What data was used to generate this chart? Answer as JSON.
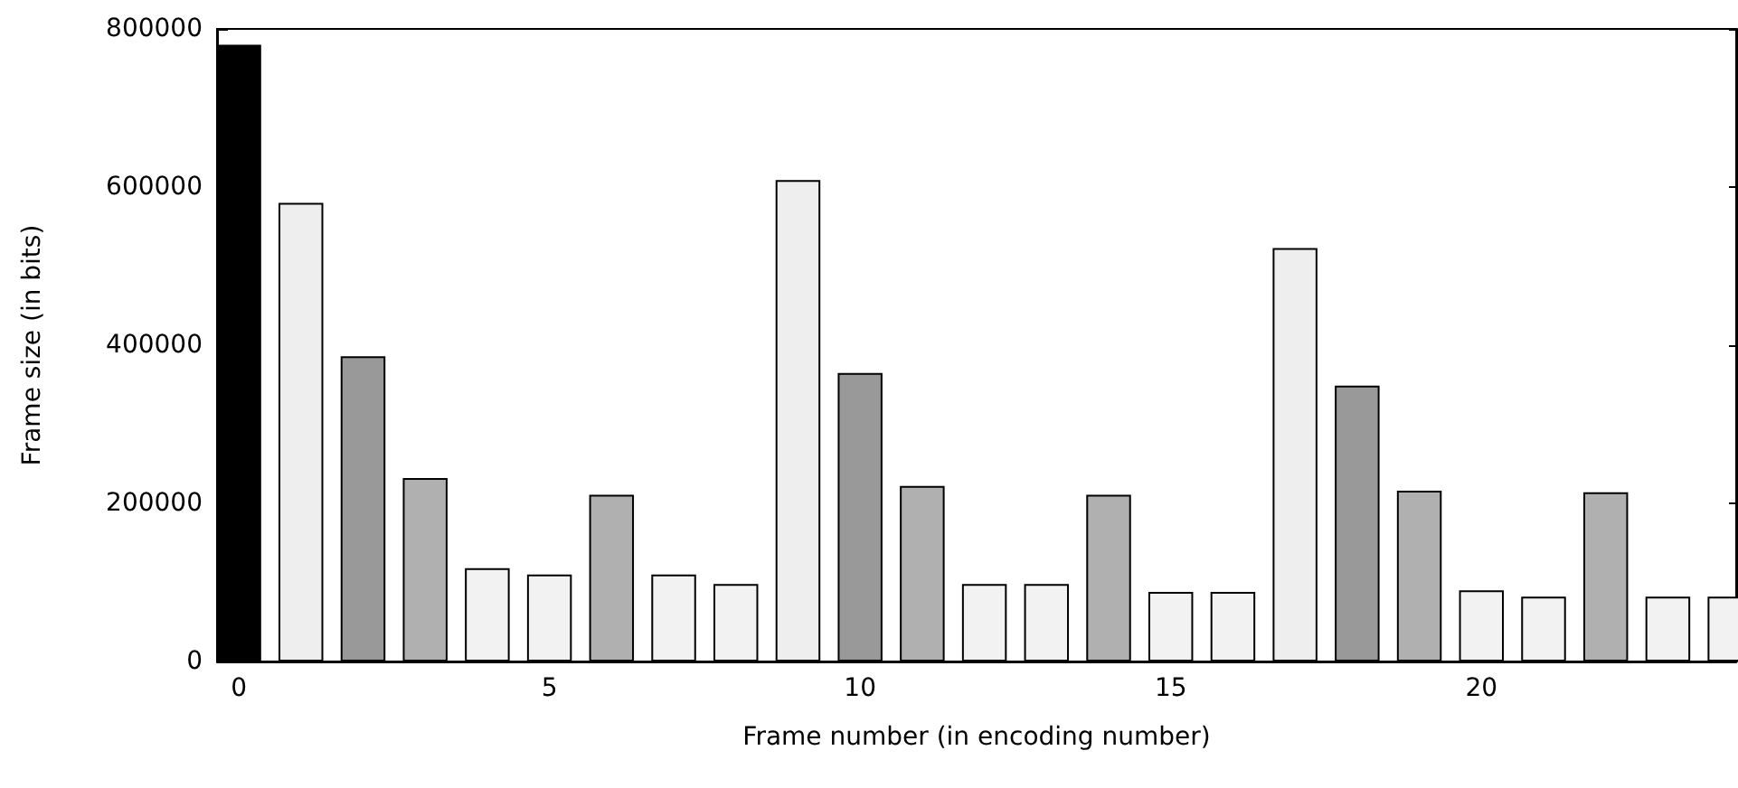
{
  "chart_data": {
    "type": "bar",
    "xlabel": "Frame number (in encoding number)",
    "ylabel": "Frame size (in bits)",
    "x": [
      0,
      1,
      2,
      3,
      4,
      5,
      6,
      7,
      8,
      9,
      10,
      11,
      12,
      13,
      14,
      15,
      16,
      17,
      18,
      19,
      20,
      21,
      22,
      23,
      24
    ],
    "values": [
      780000,
      580000,
      386000,
      232000,
      118000,
      110000,
      211000,
      110000,
      98000,
      609000,
      365000,
      222000,
      98000,
      98000,
      211000,
      88000,
      88000,
      523000,
      349000,
      216000,
      90000,
      82000,
      214000,
      82000,
      82000
    ],
    "colors": [
      "#000000",
      "#eeeeee",
      "#999999",
      "#b0b0b0",
      "#f2f2f2",
      "#f2f2f2",
      "#b0b0b0",
      "#f2f2f2",
      "#f2f2f2",
      "#eeeeee",
      "#999999",
      "#b0b0b0",
      "#f2f2f2",
      "#f2f2f2",
      "#b0b0b0",
      "#f2f2f2",
      "#f2f2f2",
      "#eeeeee",
      "#999999",
      "#b0b0b0",
      "#f2f2f2",
      "#f2f2f2",
      "#b0b0b0",
      "#f2f2f2",
      "#f2f2f2"
    ],
    "xlim": [
      -0.35,
      24.1
    ],
    "xticks": [
      0,
      5,
      10,
      15,
      20
    ],
    "ylim": [
      0,
      800000
    ],
    "yticks": [
      0,
      200000,
      400000,
      600000,
      800000
    ],
    "grid": false
  }
}
